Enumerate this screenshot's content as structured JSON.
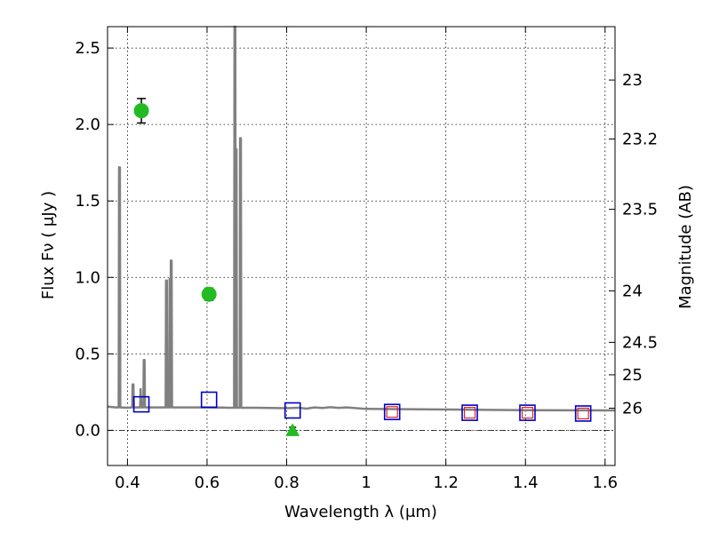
{
  "chart_data": {
    "type": "scatter",
    "xlabel": "Wavelength  λ (μm)",
    "ylabel": "Flux  Fν  ( μJy )",
    "y2label": "Magnitude (AB)",
    "xlim": [
      0.35,
      1.625
    ],
    "ylim": [
      -0.23,
      2.64
    ],
    "x_ticks": [
      {
        "value": 0.4,
        "label": "0.4"
      },
      {
        "value": 0.6,
        "label": "0.6"
      },
      {
        "value": 0.8,
        "label": "0.8"
      },
      {
        "value": 1.0,
        "label": "1"
      },
      {
        "value": 1.2,
        "label": "1.2"
      },
      {
        "value": 1.4,
        "label": "1.4"
      },
      {
        "value": 1.6,
        "label": "1.6"
      }
    ],
    "y_ticks": [
      {
        "value": 0.0,
        "label": "0.0"
      },
      {
        "value": 0.5,
        "label": "0.5"
      },
      {
        "value": 1.0,
        "label": "1.0"
      },
      {
        "value": 1.5,
        "label": "1.5"
      },
      {
        "value": 2.0,
        "label": "2.0"
      },
      {
        "value": 2.5,
        "label": "2.5"
      }
    ],
    "y2_ticks": [
      {
        "mag": 23,
        "label": "23"
      },
      {
        "mag": 23.2,
        "label": "23.2"
      },
      {
        "mag": 23.5,
        "label": "23.5"
      },
      {
        "mag": 24,
        "label": "24"
      },
      {
        "mag": 24.5,
        "label": "24.5"
      },
      {
        "mag": 25,
        "label": "25"
      },
      {
        "mag": 26,
        "label": "26"
      }
    ],
    "grid": true,
    "colors": {
      "spectrum": "#808080",
      "detection": "#22bb22",
      "model_square": "#0000cc",
      "inner_square": "#dd2222",
      "errorbar": "#000000",
      "zero_line": "#000000"
    },
    "series": [
      {
        "kind": "spectrum",
        "points": [
          [
            0.35,
            0.155
          ],
          [
            0.37,
            0.15
          ],
          [
            0.378,
            0.15
          ],
          [
            0.379,
            1.72
          ],
          [
            0.381,
            1.72
          ],
          [
            0.382,
            0.15
          ],
          [
            0.4,
            0.148
          ],
          [
            0.412,
            0.15
          ],
          [
            0.413,
            0.3
          ],
          [
            0.415,
            0.3
          ],
          [
            0.416,
            0.15
          ],
          [
            0.432,
            0.15
          ],
          [
            0.433,
            0.27
          ],
          [
            0.435,
            0.15
          ],
          [
            0.44,
            0.15
          ],
          [
            0.441,
            0.46
          ],
          [
            0.443,
            0.46
          ],
          [
            0.444,
            0.15
          ],
          [
            0.48,
            0.15
          ],
          [
            0.496,
            0.15
          ],
          [
            0.497,
            0.98
          ],
          [
            0.499,
            0.98
          ],
          [
            0.5,
            0.15
          ],
          [
            0.505,
            0.15
          ],
          [
            0.506,
            0.99
          ],
          [
            0.507,
            0.15
          ],
          [
            0.508,
            0.15
          ],
          [
            0.509,
            1.11
          ],
          [
            0.511,
            1.11
          ],
          [
            0.512,
            0.15
          ],
          [
            0.55,
            0.15
          ],
          [
            0.6,
            0.15
          ],
          [
            0.65,
            0.148
          ],
          [
            0.668,
            0.148
          ],
          [
            0.669,
            2.64
          ],
          [
            0.671,
            2.64
          ],
          [
            0.672,
            0.148
          ],
          [
            0.673,
            0.148
          ],
          [
            0.674,
            1.84
          ],
          [
            0.675,
            0.148
          ],
          [
            0.682,
            0.148
          ],
          [
            0.683,
            1.91
          ],
          [
            0.685,
            1.91
          ],
          [
            0.686,
            0.148
          ],
          [
            0.72,
            0.148
          ],
          [
            0.76,
            0.146
          ],
          [
            0.8,
            0.145
          ],
          [
            0.83,
            0.148
          ],
          [
            0.85,
            0.142
          ],
          [
            0.87,
            0.15
          ],
          [
            0.89,
            0.146
          ],
          [
            0.91,
            0.151
          ],
          [
            0.93,
            0.147
          ],
          [
            0.95,
            0.15
          ],
          [
            1.0,
            0.14
          ],
          [
            1.1,
            0.138
          ],
          [
            1.2,
            0.136
          ],
          [
            1.3,
            0.134
          ],
          [
            1.4,
            0.132
          ],
          [
            1.5,
            0.131
          ],
          [
            1.625,
            0.13
          ]
        ]
      },
      {
        "kind": "detections",
        "points": [
          {
            "x": 0.435,
            "y": 2.09,
            "err": 0.08
          },
          {
            "x": 0.605,
            "y": 0.89,
            "err": 0.04
          }
        ]
      },
      {
        "kind": "upper_limit",
        "points": [
          {
            "x": 0.815,
            "y": 0.0,
            "err": 0.02
          }
        ]
      },
      {
        "kind": "model_photometry",
        "points": [
          {
            "x": 0.435,
            "y": 0.17
          },
          {
            "x": 0.605,
            "y": 0.2
          },
          {
            "x": 0.815,
            "y": 0.13
          },
          {
            "x": 1.065,
            "y": 0.12
          },
          {
            "x": 1.26,
            "y": 0.115
          },
          {
            "x": 1.405,
            "y": 0.115
          },
          {
            "x": 1.545,
            "y": 0.11
          }
        ]
      },
      {
        "kind": "model_photometry_inner",
        "points": [
          {
            "x": 1.065,
            "y": 0.12
          },
          {
            "x": 1.26,
            "y": 0.115
          },
          {
            "x": 1.405,
            "y": 0.115
          },
          {
            "x": 1.545,
            "y": 0.11
          }
        ]
      }
    ]
  }
}
